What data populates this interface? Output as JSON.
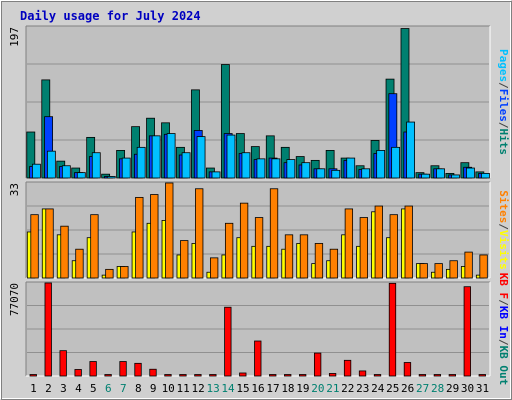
{
  "chart_data": {
    "type": "bar",
    "title": "Daily usage for July 2024",
    "categories": [
      "1",
      "2",
      "3",
      "4",
      "5",
      "6",
      "7",
      "8",
      "9",
      "10",
      "11",
      "12",
      "13",
      "14",
      "15",
      "16",
      "17",
      "18",
      "19",
      "20",
      "21",
      "22",
      "23",
      "24",
      "25",
      "26",
      "27",
      "28",
      "29",
      "30",
      "31"
    ],
    "weekend_days": [
      "6",
      "7",
      "13",
      "14",
      "20",
      "21",
      "27",
      "28"
    ],
    "panels": [
      {
        "id": "hits-files-pages",
        "ymax": 197,
        "ymax_label": "197",
        "axis_labels": [
          {
            "text": "Pages",
            "color": "#00c0ff"
          },
          {
            "text": "/",
            "color": "#444444"
          },
          {
            "text": "Files",
            "color": "#0040ff"
          },
          {
            "text": "/",
            "color": "#444444"
          },
          {
            "text": "Hits",
            "color": "#008070"
          }
        ],
        "series": [
          {
            "name": "Hits",
            "color": "#008070",
            "values": [
              60,
              128,
              22,
              13,
              53,
              5,
              36,
              67,
              78,
              72,
              40,
              115,
              13,
              148,
              58,
              41,
              55,
              40,
              28,
              23,
              36,
              26,
              16,
              49,
              129,
              195,
              7,
              16,
              6,
              20,
              8
            ]
          },
          {
            "name": "Files",
            "color": "#0040ff",
            "values": [
              15,
              80,
              15,
              7,
              28,
              2,
              25,
              31,
              55,
              57,
              30,
              62,
              8,
              58,
              32,
              24,
              26,
              20,
              17,
              12,
              12,
              23,
              11,
              32,
              110,
              60,
              5,
              12,
              4,
              14,
              6
            ]
          },
          {
            "name": "Pages",
            "color": "#00c0ff",
            "values": [
              18,
              35,
              16,
              7,
              33,
              2,
              26,
              40,
              55,
              58,
              33,
              54,
              8,
              56,
              33,
              25,
              25,
              24,
              20,
              12,
              10,
              26,
              12,
              36,
              40,
              73,
              5,
              12,
              4,
              13,
              6
            ]
          }
        ]
      },
      {
        "id": "visits-sites",
        "ymax": 33,
        "ymax_label": "33",
        "axis_labels": [
          {
            "text": "Sites",
            "color": "#ff8000"
          },
          {
            "text": "/",
            "color": "#444444"
          },
          {
            "text": "Visits",
            "color": "#ffff00"
          }
        ],
        "series": [
          {
            "name": "Visits",
            "color": "#ffff00",
            "values": [
              16,
              24,
              15,
              6,
              14,
              1,
              4,
              16,
              19,
              20,
              8,
              12,
              2,
              8,
              14,
              11,
              11,
              10,
              12,
              5,
              6,
              15,
              11,
              23,
              14,
              24,
              5,
              2,
              3,
              4,
              1
            ]
          },
          {
            "name": "Sites",
            "color": "#ff8000",
            "values": [
              22,
              24,
              18,
              10,
              22,
              3,
              4,
              28,
              29,
              33,
              13,
              31,
              7,
              19,
              26,
              21,
              31,
              15,
              15,
              12,
              10,
              24,
              21,
              25,
              22,
              25,
              5,
              5,
              6,
              9,
              8
            ]
          }
        ]
      },
      {
        "id": "kbytes",
        "ymax": 77070,
        "ymax_label": "77070",
        "axis_labels": [
          {
            "text": "KB F",
            "color": "#ff0000"
          },
          {
            "text": "/",
            "color": "#444444"
          },
          {
            "text": "KB In",
            "color": "#0000ff"
          },
          {
            "text": "/",
            "color": "#444444"
          },
          {
            "text": "KB Out",
            "color": "#008070"
          }
        ],
        "series": [
          {
            "name": "KB F",
            "color": "#ff0000",
            "values": [
              300,
              77070,
              21000,
              5400,
              12000,
              300,
              12000,
              10500,
              5600,
              450,
              450,
              450,
              400,
              57000,
              2500,
              29000,
              700,
              1100,
              550,
              19000,
              2100,
              13000,
              4200,
              450,
              76800,
              11200,
              450,
              450,
              450,
              74000,
              550
            ]
          }
        ]
      }
    ]
  }
}
